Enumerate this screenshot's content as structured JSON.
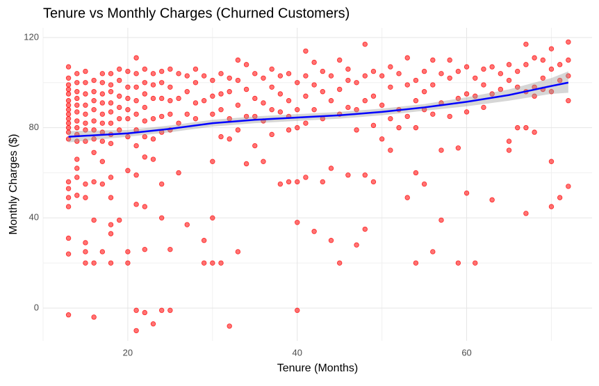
{
  "chart_data": {
    "type": "scatter",
    "title": "Tenure vs Monthly Charges (Churned Customers)",
    "x_label": "Tenure (Months)",
    "y_label": "Monthly Charges ($)",
    "xlim": [
      10,
      74.8
    ],
    "ylim": [
      -14.5,
      124.3
    ],
    "xticks": [
      20,
      40,
      60
    ],
    "yticks": [
      0,
      40,
      80,
      120
    ],
    "grid": true,
    "color": "#ff0000",
    "x": [
      13,
      13,
      13,
      13,
      13,
      13,
      13,
      13,
      13,
      13,
      13,
      13,
      13,
      13,
      13,
      13,
      13,
      13,
      13,
      13,
      13,
      14,
      14,
      14,
      14,
      14,
      14,
      14,
      14,
      14,
      14,
      14,
      14,
      14,
      14,
      15,
      15,
      15,
      15,
      15,
      15,
      15,
      15,
      15,
      15,
      15,
      15,
      15,
      16,
      16,
      16,
      16,
      16,
      16,
      16,
      16,
      16,
      16,
      16,
      16,
      17,
      17,
      17,
      17,
      17,
      17,
      17,
      17,
      17,
      17,
      17,
      18,
      18,
      18,
      18,
      18,
      18,
      18,
      18,
      18,
      18,
      18,
      18,
      18,
      19,
      19,
      19,
      19,
      19,
      19,
      19,
      20,
      20,
      20,
      20,
      20,
      20,
      20,
      20,
      20,
      21,
      21,
      21,
      21,
      21,
      21,
      21,
      21,
      21,
      21,
      21,
      22,
      22,
      22,
      22,
      22,
      22,
      22,
      22,
      22,
      22,
      23,
      23,
      23,
      23,
      23,
      23,
      23,
      24,
      24,
      24,
      24,
      24,
      24,
      24,
      24,
      25,
      25,
      25,
      25,
      25,
      25,
      25,
      26,
      26,
      26,
      26,
      27,
      27,
      27,
      27,
      28,
      28,
      28,
      28,
      29,
      29,
      29,
      29,
      30,
      30,
      30,
      30,
      30,
      30,
      31,
      31,
      31,
      31,
      31,
      32,
      32,
      32,
      32,
      32,
      33,
      33,
      33,
      33,
      33,
      34,
      34,
      34,
      34,
      35,
      35,
      35,
      35,
      36,
      36,
      36,
      36,
      37,
      37,
      37,
      37,
      38,
      38,
      38,
      38,
      39,
      39,
      39,
      39,
      39,
      40,
      40,
      40,
      40,
      40,
      40,
      41,
      41,
      41,
      41,
      41,
      42,
      42,
      42,
      42,
      43,
      43,
      43,
      43,
      44,
      44,
      44,
      44,
      45,
      45,
      45,
      45,
      46,
      46,
      46,
      46,
      47,
      47,
      47,
      47,
      48,
      48,
      48,
      48,
      48,
      49,
      49,
      49,
      49,
      50,
      50,
      50,
      51,
      51,
      51,
      51,
      52,
      52,
      52,
      53,
      53,
      53,
      53,
      54,
      54,
      54,
      54,
      54,
      55,
      55,
      55,
      55,
      56,
      56,
      56,
      56,
      57,
      57,
      57,
      57,
      58,
      58,
      58,
      59,
      59,
      59,
      59,
      60,
      60,
      60,
      60,
      61,
      61,
      61,
      62,
      62,
      62,
      63,
      63,
      63,
      64,
      64,
      65,
      65,
      65,
      65,
      66,
      66,
      66,
      67,
      67,
      67,
      67,
      67,
      68,
      68,
      68,
      68,
      69,
      69,
      69,
      70,
      70,
      70,
      70,
      70,
      71,
      71,
      71,
      72,
      72,
      72,
      72,
      72
    ],
    "y": [
      107,
      102,
      99,
      97,
      95,
      92,
      90,
      88,
      86,
      84,
      82,
      80,
      78,
      75,
      56,
      53,
      49,
      45,
      31,
      24,
      -3,
      104,
      100,
      96,
      93,
      90,
      87,
      83,
      80,
      77,
      74,
      66,
      62,
      58,
      50,
      105,
      100,
      95,
      90,
      86,
      82,
      79,
      74,
      55,
      49,
      29,
      25,
      20,
      101,
      96,
      92,
      88,
      83,
      79,
      75,
      69,
      56,
      39,
      20,
      -4,
      104,
      100,
      95,
      91,
      86,
      82,
      78,
      74,
      65,
      55,
      25,
      104,
      99,
      96,
      91,
      87,
      82,
      77,
      73,
      58,
      49,
      37,
      33,
      20,
      106,
      101,
      94,
      89,
      84,
      79,
      39,
      105,
      98,
      93,
      88,
      84,
      76,
      61,
      25,
      20,
      111,
      104,
      98,
      92,
      86,
      79,
      72,
      59,
      46,
      -1,
      -10,
      106,
      100,
      95,
      89,
      83,
      76,
      67,
      45,
      26,
      -2,
      104,
      99,
      93,
      84,
      75,
      66,
      -7,
      105,
      100,
      93,
      85,
      78,
      55,
      40,
      -1,
      106,
      98,
      92,
      86,
      79,
      26,
      -1,
      104,
      93,
      82,
      60,
      103,
      96,
      86,
      37,
      106,
      100,
      91,
      84,
      103,
      92,
      30,
      20,
      101,
      94,
      86,
      65,
      40,
      20,
      104,
      95,
      88,
      76,
      20,
      102,
      96,
      84,
      75,
      -8,
      110,
      101,
      90,
      79,
      25,
      108,
      97,
      85,
      64,
      104,
      93,
      85,
      72,
      102,
      91,
      83,
      65,
      106,
      98,
      88,
      77,
      103,
      95,
      87,
      55,
      104,
      92,
      85,
      79,
      56,
      100,
      88,
      80,
      56,
      38,
      -1,
      114,
      103,
      94,
      82,
      58,
      109,
      99,
      88,
      34,
      105,
      96,
      84,
      56,
      103,
      92,
      62,
      30,
      110,
      97,
      86,
      20,
      106,
      101,
      89,
      59,
      100,
      88,
      79,
      28,
      117,
      103,
      92,
      59,
      35,
      105,
      94,
      81,
      56,
      103,
      90,
      75,
      107,
      98,
      84,
      70,
      104,
      88,
      80,
      111,
      99,
      85,
      49,
      101,
      92,
      80,
      60,
      20,
      105,
      96,
      88,
      55,
      110,
      99,
      86,
      25,
      104,
      91,
      70,
      39,
      110,
      102,
      85,
      105,
      93,
      71,
      20,
      107,
      95,
      87,
      51,
      102,
      94,
      20,
      106,
      99,
      89,
      107,
      95,
      48,
      104,
      97,
      108,
      101,
      70,
      74,
      105,
      98,
      80,
      117,
      108,
      96,
      80,
      42,
      111,
      98,
      94,
      78,
      110,
      102,
      97,
      115,
      106,
      96,
      65,
      45,
      108,
      101,
      49,
      118,
      110,
      103,
      92,
      54
    ],
    "smooth": {
      "color": "#0000ff",
      "x": [
        13,
        20,
        25,
        30,
        35,
        40,
        45,
        50,
        55,
        60,
        65,
        70,
        72
      ],
      "y": [
        76,
        77.5,
        79.5,
        82,
        83.5,
        84.5,
        85.5,
        87,
        89,
        91.5,
        94.5,
        98.5,
        100
      ],
      "lower": [
        73.5,
        76,
        78,
        80.5,
        82,
        83,
        84,
        85.5,
        87.5,
        89.5,
        92,
        95,
        95.5
      ],
      "upper": [
        78.5,
        79,
        81,
        83.5,
        85,
        86,
        87,
        88.5,
        90.5,
        93.5,
        97,
        102,
        105
      ]
    }
  }
}
